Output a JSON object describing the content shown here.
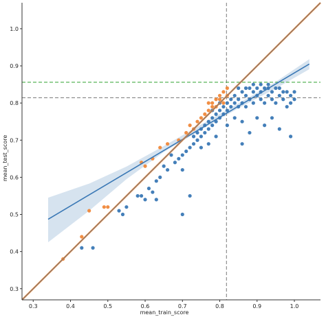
{
  "chart_data": {
    "type": "scatter",
    "xlabel": "mean_train_score",
    "ylabel": "mean_test_score",
    "xlim": [
      0.27,
      1.07
    ],
    "ylim": [
      0.27,
      1.07
    ],
    "x_ticks": [
      0.3,
      0.4,
      0.5,
      0.6,
      0.7,
      0.8,
      0.9,
      1.0
    ],
    "y_ticks": [
      0.3,
      0.4,
      0.5,
      0.6,
      0.7,
      0.8,
      0.9,
      1.0
    ],
    "x_tick_labels": [
      "0.3",
      "0.4",
      "0.5",
      "0.6",
      "0.7",
      "0.8",
      "0.9",
      "1.0"
    ],
    "y_tick_labels": [
      "0.3",
      "0.4",
      "0.5",
      "0.6",
      "0.7",
      "0.8",
      "0.9",
      "1.0"
    ],
    "grid": false,
    "colors": {
      "blue": "#3a78b5",
      "orange": "#f0883a",
      "band": "#c8d9ea",
      "identity_line": "#7a7a7a",
      "green_dashed": "#2ca02c",
      "gray_dashed": "#7a7a7a"
    },
    "reference_lines": {
      "vertical_dashed_x": 0.818,
      "horizontal_green_dashed_y": 0.856,
      "horizontal_gray_dashed_y": 0.814
    },
    "diagonal_y_equals_x": [
      [
        0.27,
        0.27
      ],
      [
        1.07,
        1.07
      ]
    ],
    "regression_blue": {
      "line": [
        [
          0.34,
          0.487
        ],
        [
          1.04,
          0.905
        ]
      ],
      "ci_band": [
        [
          0.34,
          0.545,
          0.425
        ],
        [
          0.45,
          0.583,
          0.51
        ],
        [
          0.55,
          0.629,
          0.595
        ],
        [
          0.65,
          0.684,
          0.668
        ],
        [
          0.75,
          0.742,
          0.728
        ],
        [
          0.85,
          0.799,
          0.786
        ],
        [
          0.95,
          0.857,
          0.839
        ],
        [
          1.04,
          0.918,
          0.891
        ]
      ]
    },
    "regression_orange": {
      "line": [
        [
          0.27,
          0.27
        ],
        [
          1.07,
          1.07
        ]
      ]
    },
    "points_blue": [
      [
        0.43,
        0.41
      ],
      [
        0.46,
        0.41
      ],
      [
        0.53,
        0.51
      ],
      [
        0.54,
        0.5
      ],
      [
        0.55,
        0.52
      ],
      [
        0.58,
        0.55
      ],
      [
        0.59,
        0.55
      ],
      [
        0.6,
        0.54
      ],
      [
        0.61,
        0.57
      ],
      [
        0.62,
        0.56
      ],
      [
        0.63,
        0.54
      ],
      [
        0.63,
        0.59
      ],
      [
        0.64,
        0.6
      ],
      [
        0.65,
        0.63
      ],
      [
        0.66,
        0.62
      ],
      [
        0.67,
        0.66
      ],
      [
        0.68,
        0.64
      ],
      [
        0.69,
        0.65
      ],
      [
        0.7,
        0.62
      ],
      [
        0.7,
        0.66
      ],
      [
        0.71,
        0.67
      ],
      [
        0.72,
        0.68
      ],
      [
        0.72,
        0.55
      ],
      [
        0.7,
        0.5
      ],
      [
        0.73,
        0.69
      ],
      [
        0.73,
        0.71
      ],
      [
        0.74,
        0.7
      ],
      [
        0.74,
        0.72
      ],
      [
        0.75,
        0.71
      ],
      [
        0.75,
        0.73
      ],
      [
        0.76,
        0.72
      ],
      [
        0.76,
        0.74
      ],
      [
        0.77,
        0.73
      ],
      [
        0.77,
        0.75
      ],
      [
        0.78,
        0.74
      ],
      [
        0.78,
        0.76
      ],
      [
        0.79,
        0.75
      ],
      [
        0.79,
        0.77
      ],
      [
        0.8,
        0.76
      ],
      [
        0.8,
        0.78
      ],
      [
        0.81,
        0.77
      ],
      [
        0.81,
        0.79
      ],
      [
        0.82,
        0.78
      ],
      [
        0.82,
        0.8
      ],
      [
        0.83,
        0.79
      ],
      [
        0.83,
        0.81
      ],
      [
        0.84,
        0.8
      ],
      [
        0.84,
        0.82
      ],
      [
        0.85,
        0.79
      ],
      [
        0.85,
        0.81
      ],
      [
        0.86,
        0.8
      ],
      [
        0.86,
        0.83
      ],
      [
        0.87,
        0.79
      ],
      [
        0.87,
        0.82
      ],
      [
        0.88,
        0.81
      ],
      [
        0.88,
        0.84
      ],
      [
        0.89,
        0.8
      ],
      [
        0.89,
        0.83
      ],
      [
        0.9,
        0.82
      ],
      [
        0.9,
        0.84
      ],
      [
        0.91,
        0.81
      ],
      [
        0.91,
        0.83
      ],
      [
        0.92,
        0.8
      ],
      [
        0.92,
        0.84
      ],
      [
        0.93,
        0.82
      ],
      [
        0.93,
        0.84
      ],
      [
        0.94,
        0.81
      ],
      [
        0.94,
        0.83
      ],
      [
        0.95,
        0.8
      ],
      [
        0.95,
        0.84
      ],
      [
        0.96,
        0.82
      ],
      [
        0.96,
        0.84
      ],
      [
        0.97,
        0.81
      ],
      [
        0.97,
        0.83
      ],
      [
        0.98,
        0.79
      ],
      [
        0.98,
        0.83
      ],
      [
        0.99,
        0.8
      ],
      [
        0.99,
        0.82
      ],
      [
        1.0,
        0.81
      ],
      [
        1.0,
        0.83
      ],
      [
        0.86,
        0.75
      ],
      [
        0.88,
        0.72
      ],
      [
        0.9,
        0.76
      ],
      [
        0.92,
        0.74
      ],
      [
        0.94,
        0.76
      ],
      [
        0.96,
        0.73
      ],
      [
        0.86,
        0.69
      ],
      [
        0.99,
        0.71
      ],
      [
        0.84,
        0.76
      ],
      [
        0.82,
        0.74
      ],
      [
        0.79,
        0.71
      ],
      [
        0.77,
        0.69
      ],
      [
        0.75,
        0.68
      ],
      [
        0.78,
        0.78
      ],
      [
        0.8,
        0.8
      ],
      [
        0.85,
        0.84
      ],
      [
        0.87,
        0.84
      ],
      [
        0.89,
        0.85
      ],
      [
        0.91,
        0.85
      ],
      [
        0.93,
        0.85
      ]
    ],
    "points_orange": [
      [
        0.38,
        0.38
      ],
      [
        0.43,
        0.44
      ],
      [
        0.45,
        0.51
      ],
      [
        0.49,
        0.52
      ],
      [
        0.5,
        0.52
      ],
      [
        0.59,
        0.64
      ],
      [
        0.6,
        0.63
      ],
      [
        0.62,
        0.65
      ],
      [
        0.64,
        0.68
      ],
      [
        0.66,
        0.69
      ],
      [
        0.69,
        0.7
      ],
      [
        0.71,
        0.72
      ],
      [
        0.72,
        0.74
      ],
      [
        0.73,
        0.73
      ],
      [
        0.74,
        0.75
      ],
      [
        0.75,
        0.76
      ],
      [
        0.76,
        0.77
      ],
      [
        0.77,
        0.78
      ],
      [
        0.78,
        0.79
      ],
      [
        0.78,
        0.8
      ],
      [
        0.79,
        0.79
      ],
      [
        0.8,
        0.81
      ],
      [
        0.8,
        0.82
      ],
      [
        0.81,
        0.8
      ],
      [
        0.81,
        0.83
      ],
      [
        0.82,
        0.82
      ],
      [
        0.82,
        0.84
      ],
      [
        0.77,
        0.8
      ],
      [
        0.79,
        0.81
      ]
    ]
  }
}
